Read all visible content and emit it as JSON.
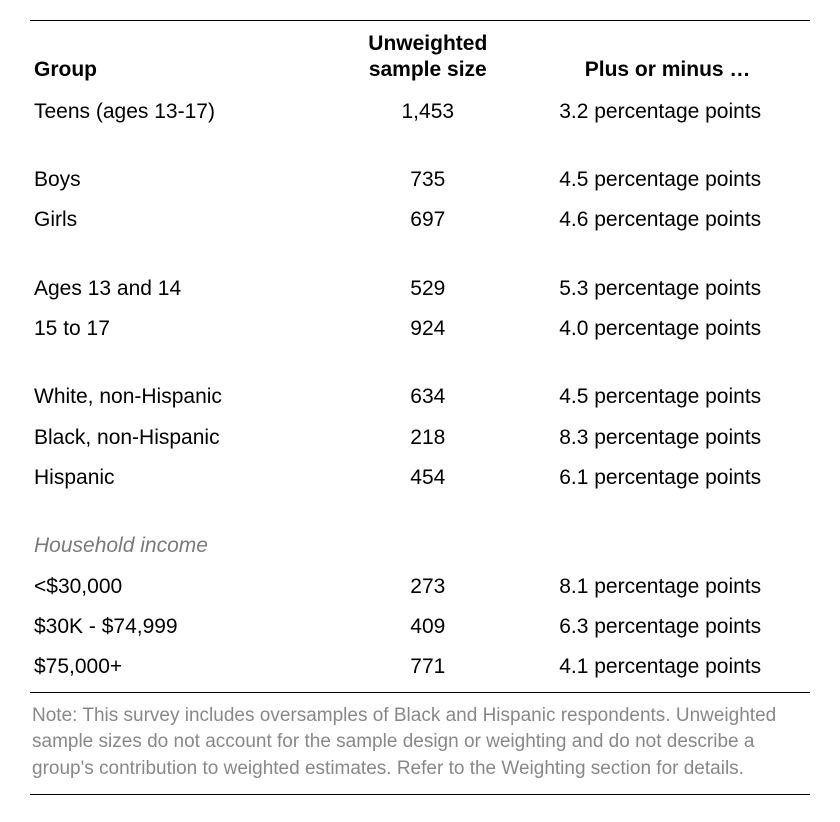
{
  "table": {
    "columns": [
      "Group",
      "Unweighted sample size",
      "Plus or minus …"
    ],
    "col_classes": [
      "col-group",
      "col-size",
      "col-moe"
    ],
    "header_fontsize": 21,
    "cell_fontsize": 21,
    "text_color": "#000000",
    "subhead_color": "#7a7a7a",
    "border_color": "#000000",
    "background_color": "#ffffff",
    "moe_unit": "percentage points",
    "groups": [
      {
        "rows": [
          {
            "label": "Teens (ages 13-17)",
            "size": "1,453",
            "moe": "3.2"
          }
        ]
      },
      {
        "rows": [
          {
            "label": "Boys",
            "size": "735",
            "moe": "4.5"
          },
          {
            "label": "Girls",
            "size": "697",
            "moe": "4.6"
          }
        ]
      },
      {
        "rows": [
          {
            "label": "Ages 13 and 14",
            "size": "529",
            "moe": "5.3"
          },
          {
            "label": "15 to 17",
            "size": "924",
            "moe": "4.0"
          }
        ]
      },
      {
        "rows": [
          {
            "label": "White, non-Hispanic",
            "size": "634",
            "moe": "4.5"
          },
          {
            "label": "Black, non-Hispanic",
            "size": "218",
            "moe": "8.3"
          },
          {
            "label": "Hispanic",
            "size": "454",
            "moe": "6.1"
          }
        ]
      },
      {
        "subhead": "Household income",
        "rows": [
          {
            "label": "<$30,000",
            "size": "273",
            "moe": "8.1"
          },
          {
            "label": "$30K - $74,999",
            "size": "409",
            "moe": "6.3"
          },
          {
            "label": "$75,000+",
            "size": "771",
            "moe": "4.1"
          }
        ]
      }
    ]
  },
  "note": {
    "text": "Note: This survey includes oversamples of Black and Hispanic respondents. Unweighted sample sizes do not account for the sample design or weighting and do not describe a group's contribution to weighted estimates. Refer to the Weighting section for details.",
    "color": "#888888",
    "fontsize": 19
  }
}
